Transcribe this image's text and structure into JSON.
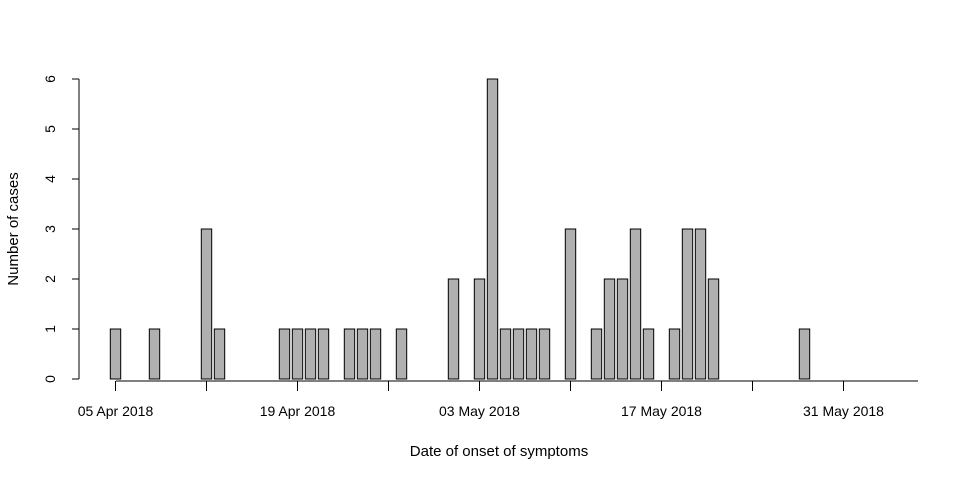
{
  "chart_data": {
    "type": "bar",
    "title": "",
    "xlabel": "Date of onset of symptoms",
    "ylabel": "Number of cases",
    "ylim": [
      0,
      6
    ],
    "y_ticks": [
      "0",
      "1",
      "2",
      "3",
      "4",
      "5",
      "6"
    ],
    "x_start": "2018-04-05",
    "x_tick_labels": [
      {
        "date": "2018-04-05",
        "label": "05 Apr 2018"
      },
      {
        "date": "2018-04-19",
        "label": "19 Apr 2018"
      },
      {
        "date": "2018-05-03",
        "label": "03 May 2018"
      },
      {
        "date": "2018-05-17",
        "label": "17 May 2018"
      },
      {
        "date": "2018-05-31",
        "label": "31 May 2018"
      }
    ],
    "x_minor_ticks": [
      "2018-04-12",
      "2018-04-26",
      "2018-05-10",
      "2018-05-24"
    ],
    "values": [
      1,
      0,
      0,
      1,
      0,
      0,
      0,
      3,
      1,
      0,
      0,
      0,
      0,
      1,
      1,
      1,
      1,
      0,
      1,
      1,
      1,
      0,
      1,
      0,
      0,
      0,
      2,
      0,
      2,
      6,
      1,
      1,
      1,
      1,
      0,
      3,
      0,
      1,
      2,
      2,
      3,
      1,
      0,
      1,
      3,
      3,
      2,
      0,
      0,
      0,
      0,
      0,
      0,
      1,
      0,
      0,
      0,
      0,
      0,
      0
    ],
    "grid": false,
    "colors": {
      "bar_fill": "#b0b0b0",
      "bar_stroke": "#000000"
    }
  }
}
